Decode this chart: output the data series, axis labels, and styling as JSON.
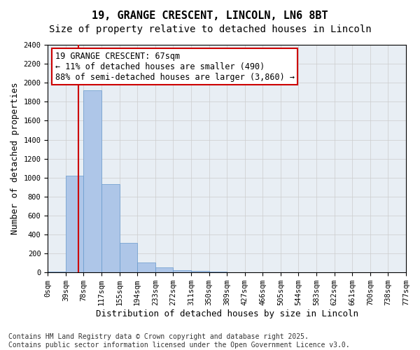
{
  "title_line1": "19, GRANGE CRESCENT, LINCOLN, LN6 8BT",
  "title_line2": "Size of property relative to detached houses in Lincoln",
  "xlabel": "Distribution of detached houses by size in Lincoln",
  "ylabel": "Number of detached properties",
  "bin_labels": [
    "0sqm",
    "39sqm",
    "78sqm",
    "117sqm",
    "155sqm",
    "194sqm",
    "233sqm",
    "272sqm",
    "311sqm",
    "350sqm",
    "389sqm",
    "427sqm",
    "466sqm",
    "505sqm",
    "544sqm",
    "583sqm",
    "622sqm",
    "661sqm",
    "700sqm",
    "738sqm",
    "777sqm"
  ],
  "bar_heights": [
    10,
    1020,
    1920,
    930,
    315,
    105,
    50,
    25,
    15,
    10,
    5,
    2,
    1,
    0,
    0,
    0,
    0,
    0,
    0,
    0
  ],
  "bar_color": "#aec6e8",
  "bar_edge_color": "#6699cc",
  "vline_color": "#cc0000",
  "annotation_text": "19 GRANGE CRESCENT: 67sqm\n← 11% of detached houses are smaller (490)\n88% of semi-detached houses are larger (3,860) →",
  "annotation_box_color": "#ffffff",
  "annotation_box_edge": "#cc0000",
  "ylim": [
    0,
    2400
  ],
  "yticks": [
    0,
    200,
    400,
    600,
    800,
    1000,
    1200,
    1400,
    1600,
    1800,
    2000,
    2200,
    2400
  ],
  "grid_color": "#cccccc",
  "bg_color": "#e8eef4",
  "footer_text": "Contains HM Land Registry data © Crown copyright and database right 2025.\nContains public sector information licensed under the Open Government Licence v3.0.",
  "title_fontsize": 11,
  "subtitle_fontsize": 10,
  "axis_label_fontsize": 9,
  "tick_fontsize": 7.5,
  "annotation_fontsize": 8.5,
  "footer_fontsize": 7
}
